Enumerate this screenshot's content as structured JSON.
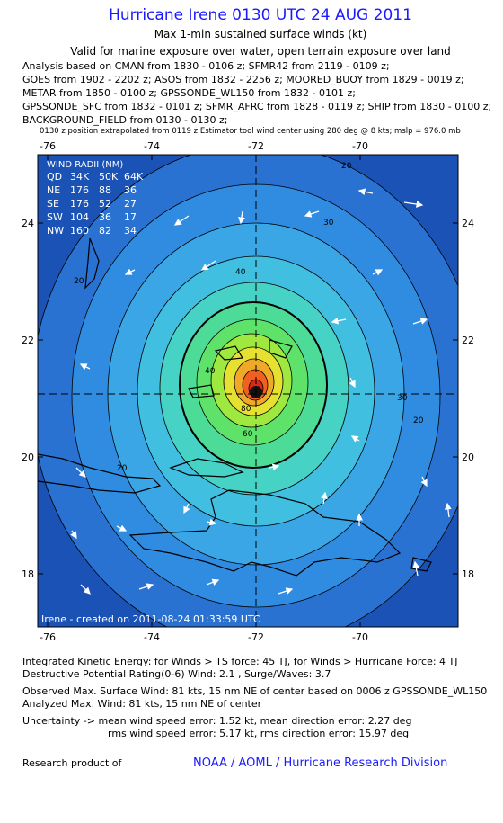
{
  "header": {
    "title": "Hurricane Irene 0130 UTC 24 AUG 2011",
    "subtitle": "Max 1-min sustained surface winds (kt)",
    "valid": "Valid for marine exposure over water, open terrain exposure over land",
    "analysis_lines": [
      "Analysis based on CMAN from 1830 - 0106 z; SFMR42 from 2119 - 0109 z;",
      "GOES from 1902 - 2202 z; ASOS from 1832 - 2256 z; MOORED_BUOY from 1829 - 0019 z;",
      "METAR from 1850 - 0100 z; GPSSONDE_WL150 from 1832 - 0101 z;",
      "GPSSONDE_SFC from 1832 - 0101 z; SFMR_AFRC from 1828 - 0119 z; SHIP from 1830 - 0100 z;",
      "BACKGROUND_FIELD from 0130 - 0130 z;"
    ],
    "note": "0130 z position extrapolated from 0119 z Estimator tool wind center using 280 deg @ 8 kts; mslp = 976.0 mb"
  },
  "map": {
    "lon_ticks": [
      -76,
      -74,
      -72,
      -70
    ],
    "lat_ticks": [
      18,
      20,
      22,
      24
    ],
    "wind_radii": {
      "title": "WIND RADII (NM)",
      "rows": [
        [
          "QD",
          "34K",
          "50K",
          "64K"
        ],
        [
          "NE",
          "176",
          "88",
          "36"
        ],
        [
          "SE",
          "176",
          "52",
          "27"
        ],
        [
          "SW",
          "104",
          "36",
          "17"
        ],
        [
          "NW",
          "160",
          "82",
          "34"
        ]
      ]
    },
    "contour_labels": [
      20,
      30,
      40,
      20,
      20,
      20,
      30,
      40,
      60,
      80
    ],
    "credit": "Irene - created on 2011-08-24 01:33:59 UTC"
  },
  "footer": {
    "lines": [
      "Integrated Kinetic Energy:  for Winds > TS force: 45 TJ,  for Winds > Hurricane Force: 4 TJ",
      "Destructive Potential Rating(0-6)  Wind: 2.1 , Surge/Waves: 3.7",
      "Observed Max. Surface Wind: 81 kts, 15 nm NE of center based on 0006 z GPSSONDE_WL150",
      "Analyzed Max. Wind: 81 kts, 15 nm NE of center",
      "Uncertainty -> mean wind speed error: 1.52 kt,   mean direction error: 2.27 deg",
      "rms wind speed error: 5.17 kt,  rms direction error: 15.97 deg"
    ],
    "research": "Research product of",
    "org": "NOAA / AOML / Hurricane Research Division"
  }
}
